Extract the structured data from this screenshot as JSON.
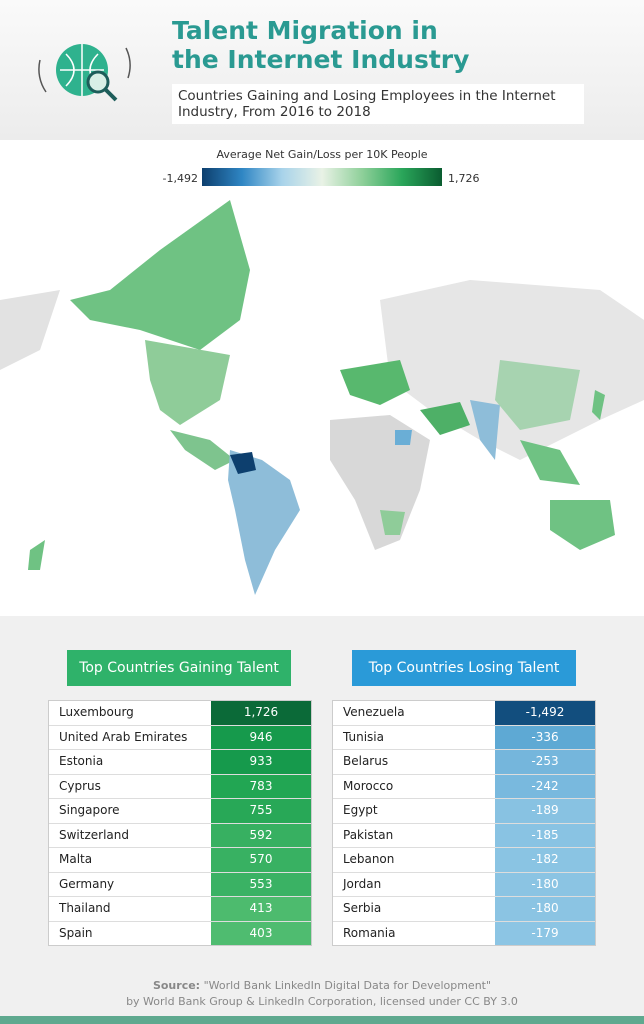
{
  "header": {
    "title": "Talent Migration in the Internet Industry",
    "subtitle": "Countries Gaining and Losing Employees in the Internet Industry, From 2016 to 2018"
  },
  "legend": {
    "title": "Average Net Gain/Loss per 10K People",
    "min": "-1,492",
    "max": "1,726"
  },
  "gaining": {
    "title": "Top Countries Gaining Talent",
    "rows": [
      [
        "Luxembourg",
        "1,726"
      ],
      [
        "United Arab Emirates",
        "946"
      ],
      [
        "Estonia",
        "933"
      ],
      [
        "Cyprus",
        "783"
      ],
      [
        "Singapore",
        "755"
      ],
      [
        "Switzerland",
        "592"
      ],
      [
        "Malta",
        "570"
      ],
      [
        "Germany",
        "553"
      ],
      [
        "Thailand",
        "413"
      ],
      [
        "Spain",
        "403"
      ]
    ]
  },
  "losing": {
    "title": "Top Countries Losing Talent",
    "rows": [
      [
        "Venezuela",
        "-1,492"
      ],
      [
        "Tunisia",
        "-336"
      ],
      [
        "Belarus",
        "-253"
      ],
      [
        "Morocco",
        "-242"
      ],
      [
        "Egypt",
        "-189"
      ],
      [
        "Pakistan",
        "-185"
      ],
      [
        "Lebanon",
        "-182"
      ],
      [
        "Jordan",
        "-180"
      ],
      [
        "Serbia",
        "-180"
      ],
      [
        "Romania",
        "-179"
      ]
    ]
  },
  "source": {
    "label": "Source:",
    "line1": "\"World Bank LinkedIn Digital Data for Development\"",
    "line2": "by World Bank Group & LinkedIn Corporation, licensed under CC BY 3.0"
  }
}
